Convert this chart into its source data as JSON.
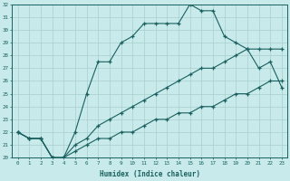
{
  "xlabel": "Humidex (Indice chaleur)",
  "bg_color": "#c8eaea",
  "grid_color": "#a8cece",
  "line_color": "#1a6060",
  "line2_x": [
    0,
    1,
    2,
    3,
    4,
    5,
    6,
    7,
    8,
    9,
    10,
    11,
    12,
    13,
    14,
    15,
    16,
    17,
    18,
    19,
    20,
    21,
    22,
    23
  ],
  "line2_y": [
    22,
    21.5,
    21.5,
    20,
    20,
    22,
    25,
    27.5,
    27.5,
    29,
    29.5,
    30.5,
    30.5,
    30.5,
    30.5,
    32,
    31.5,
    31.5,
    29.5,
    29,
    28.5,
    27,
    27.5,
    25.5
  ],
  "line1_x": [
    0,
    1,
    2,
    3,
    4,
    5,
    6,
    7,
    8,
    9,
    10,
    11,
    12,
    13,
    14,
    15,
    16,
    17,
    18,
    19,
    20,
    21,
    22,
    23
  ],
  "line1_y": [
    22,
    21.5,
    21.5,
    20,
    20,
    21,
    21.5,
    22.5,
    23,
    23.5,
    24,
    24.5,
    25,
    25.5,
    26,
    26.5,
    27,
    27,
    27.5,
    28,
    28.5,
    28.5,
    28.5,
    28.5
  ],
  "line3_x": [
    0,
    1,
    2,
    3,
    4,
    5,
    6,
    7,
    8,
    9,
    10,
    11,
    12,
    13,
    14,
    15,
    16,
    17,
    18,
    19,
    20,
    21,
    22,
    23
  ],
  "line3_y": [
    22,
    21.5,
    21.5,
    20,
    20,
    20.5,
    21,
    21.5,
    21.5,
    22,
    22,
    22.5,
    23,
    23,
    23.5,
    23.5,
    24,
    24,
    24.5,
    25,
    25,
    25.5,
    26,
    26
  ],
  "ylim": [
    20,
    32
  ],
  "xlim": [
    0,
    23
  ],
  "yticks": [
    20,
    21,
    22,
    23,
    24,
    25,
    26,
    27,
    28,
    29,
    30,
    31,
    32
  ],
  "xticks": [
    0,
    1,
    2,
    3,
    4,
    5,
    6,
    7,
    8,
    9,
    10,
    11,
    12,
    13,
    14,
    15,
    16,
    17,
    18,
    19,
    20,
    21,
    22,
    23
  ]
}
